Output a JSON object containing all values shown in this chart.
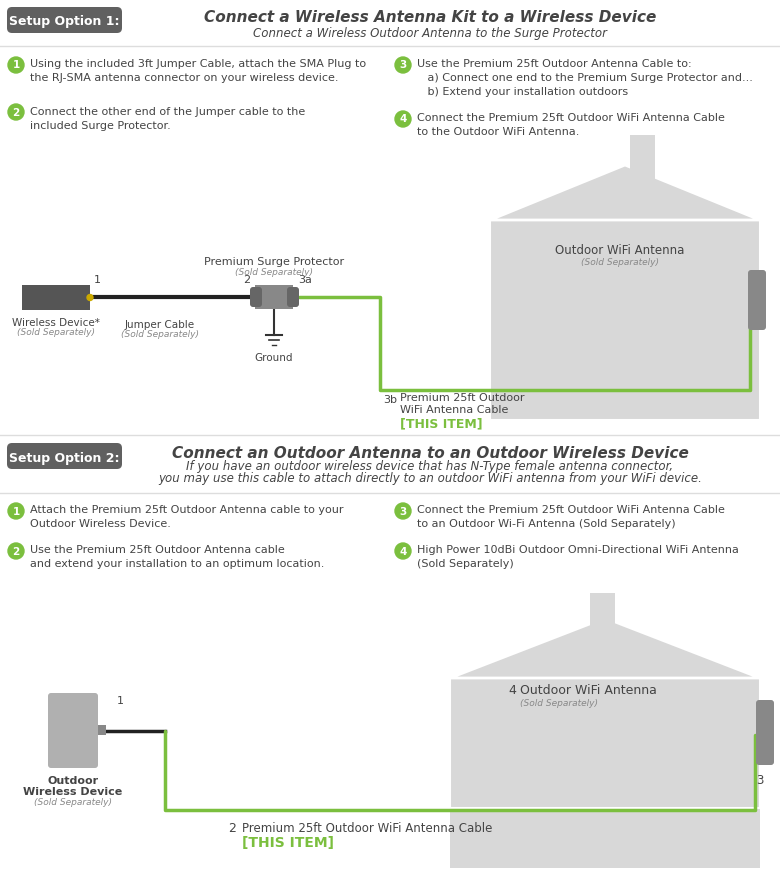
{
  "bg_color": "#ffffff",
  "title1_box_color": "#606060",
  "title1_box_text": "Setup Option 1:",
  "title1_box_text_color": "#ffffff",
  "title1_main": "Connect a Wireless Antenna Kit to a Wireless Device",
  "title1_sub": "Connect a Wireless Outdoor Antenna to the Surge Protector",
  "title2_box_color": "#606060",
  "title2_box_text": "Setup Option 2:",
  "title2_box_text_color": "#ffffff",
  "title2_main": "Connect an Outdoor Antenna to an Outdoor Wireless Device",
  "title2_sub1": "If you have an outdoor wireless device that has N-Type female antenna connector,",
  "title2_sub2": "you may use this cable to attach directly to an outdoor WiFi antenna from your WiFi device.",
  "green_color": "#7bbf3e",
  "dark_text": "#444444",
  "gray_text": "#888888",
  "light_gray": "#cccccc",
  "house_color": "#d8d8d8",
  "steps1": [
    "Using the included 3ft Jumper Cable, attach the SMA Plug to\nthe RJ-SMA antenna connector on your wireless device.",
    "Connect the other end of the Jumper cable to the\nincluded Surge Protector.",
    "Use the Premium 25ft Outdoor Antenna Cable to:\n   a) Connect one end to the Premium Surge Protector and...\n   b) Extend your installation outdoors",
    "Connect the Premium 25ft Outdoor WiFi Antenna Cable\nto the Outdoor WiFi Antenna."
  ],
  "steps2": [
    "Attach the Premium 25ft Outdoor Antenna cable to your\nOutdoor Wireless Device.",
    "Use the Premium 25ft Outdoor Antenna cable\nand extend your installation to an optimum location.",
    "Connect the Premium 25ft Outdoor WiFi Antenna Cable\nto an Outdoor Wi-Fi Antenna (Sold Separately)",
    "High Power 10dBi Outdoor Omni-Directional WiFi Antenna\n(Sold Separately)"
  ]
}
